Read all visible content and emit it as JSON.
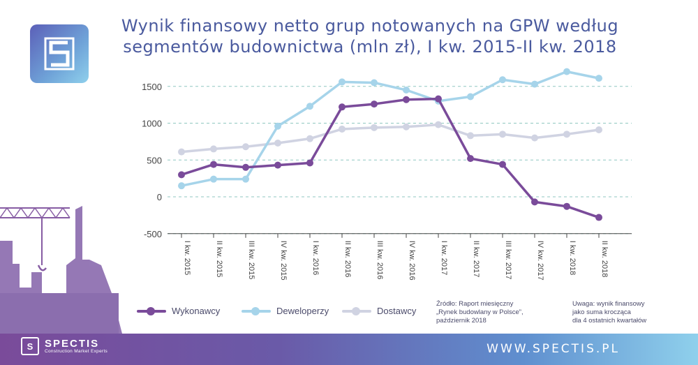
{
  "title_line1": "Wynik finansowy netto grup notowanych na GPW według",
  "title_line2": "segmentów budownictwa (mln zł), I kw. 2015-II kw. 2018",
  "logo_glyph": "S",
  "footer": {
    "url": "WWW.SPECTIS.PL",
    "brand_name": "SPECTIS",
    "brand_sub": "Construction Market Experts",
    "brand_glyph": "S"
  },
  "source_note": [
    "Źródło: Raport miesięczny",
    "„Rynek budowlany w Polsce”,",
    "październik 2018"
  ],
  "remark_note": [
    "Uwaga: wynik finansowy",
    "jako suma krocząca",
    "dla 4 ostatnich kwartałów"
  ],
  "colors": {
    "title": "#4a5a9e",
    "grid": "#8fc7c0",
    "axis": "#444444",
    "wykonawcy": "#7a4b9a",
    "deweloperzy": "#a6d4ea",
    "dostawcy": "#d0d3e2"
  },
  "chart_data": {
    "type": "line",
    "categories": [
      "I kw. 2015",
      "II kw. 2015",
      "III kw. 2015",
      "IV kw. 2015",
      "I kw. 2016",
      "II kw. 2016",
      "III kw. 2016",
      "IV kw. 2016",
      "I kw. 2017",
      "II kw. 2017",
      "III kw. 2017",
      "IV kw. 2017",
      "I kw. 2018",
      "II kw. 2018"
    ],
    "series": [
      {
        "name": "Wykonawcy",
        "values": [
          300,
          440,
          400,
          430,
          460,
          1220,
          1260,
          1320,
          1330,
          520,
          440,
          -70,
          -130,
          -280
        ]
      },
      {
        "name": "Deweloperzy",
        "values": [
          150,
          240,
          240,
          960,
          1230,
          1560,
          1550,
          1450,
          1300,
          1360,
          1590,
          1530,
          1700,
          1610
        ]
      },
      {
        "name": "Dostawcy",
        "values": [
          610,
          650,
          680,
          730,
          790,
          920,
          940,
          950,
          980,
          830,
          850,
          800,
          850,
          910
        ]
      }
    ],
    "yticks": [
      "-500",
      "0",
      "500",
      "1000",
      "1500"
    ],
    "ylim": [
      -500,
      1700
    ],
    "grid": true,
    "legend_position": "bottom"
  }
}
